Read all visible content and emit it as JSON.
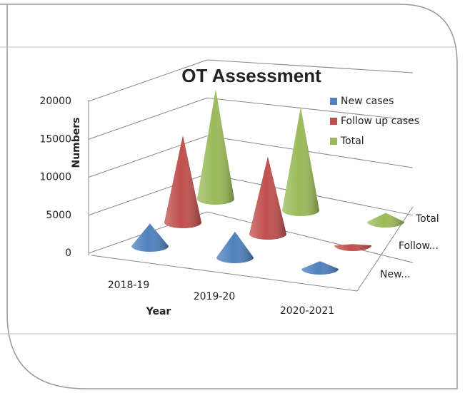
{
  "chart_data": {
    "type": "cone3d",
    "title": "OT Assessment",
    "y_label": "Numbers",
    "x_label": "Year",
    "categories": [
      "2018-19",
      "2019-20",
      "2020-2021"
    ],
    "depth_labels": [
      "New...",
      "Follow...",
      "Total"
    ],
    "series": [
      {
        "name": "New cases",
        "color": "#4f81bd",
        "values": [
          3500,
          4000,
          1200
        ]
      },
      {
        "name": "Follow up cases",
        "color": "#c0504d",
        "values": [
          13500,
          12000,
          200
        ]
      },
      {
        "name": "Total",
        "color": "#9bbb59",
        "values": [
          17000,
          16000,
          1400
        ]
      }
    ],
    "ylim": [
      0,
      20000
    ],
    "yticks": [
      0,
      5000,
      10000,
      15000,
      20000
    ],
    "grid": true,
    "legend": "top-right"
  }
}
